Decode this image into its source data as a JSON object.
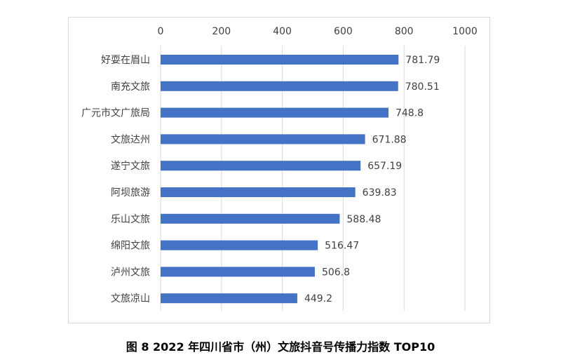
{
  "caption": "图 8 2022 年四川省市（州）文旅抖音号传播力指数 TOP10",
  "colors": {
    "bar": "#4472c4",
    "grid": "#d9d9d9",
    "text": "#404040"
  },
  "chart_data": {
    "type": "bar",
    "orientation": "horizontal",
    "categories": [
      "好耍在眉山",
      "南充文旅",
      "广元市文广旅局",
      "文旅达州",
      "遂宁文旅",
      "阿坝旅游",
      "乐山文旅",
      "绵阳文旅",
      "泸州文旅",
      "文旅凉山"
    ],
    "values": [
      781.79,
      780.51,
      748.8,
      671.88,
      657.19,
      639.83,
      588.48,
      516.47,
      506.8,
      449.2
    ],
    "value_labels": [
      "781.79",
      "780.51",
      "748.8",
      "671.88",
      "657.19",
      "639.83",
      "588.48",
      "516.47",
      "506.8",
      "449.2"
    ],
    "xlim": [
      0,
      1000
    ],
    "xticks": [
      0,
      200,
      400,
      600,
      800,
      1000
    ],
    "x_axis_position": "top",
    "grid": true
  }
}
